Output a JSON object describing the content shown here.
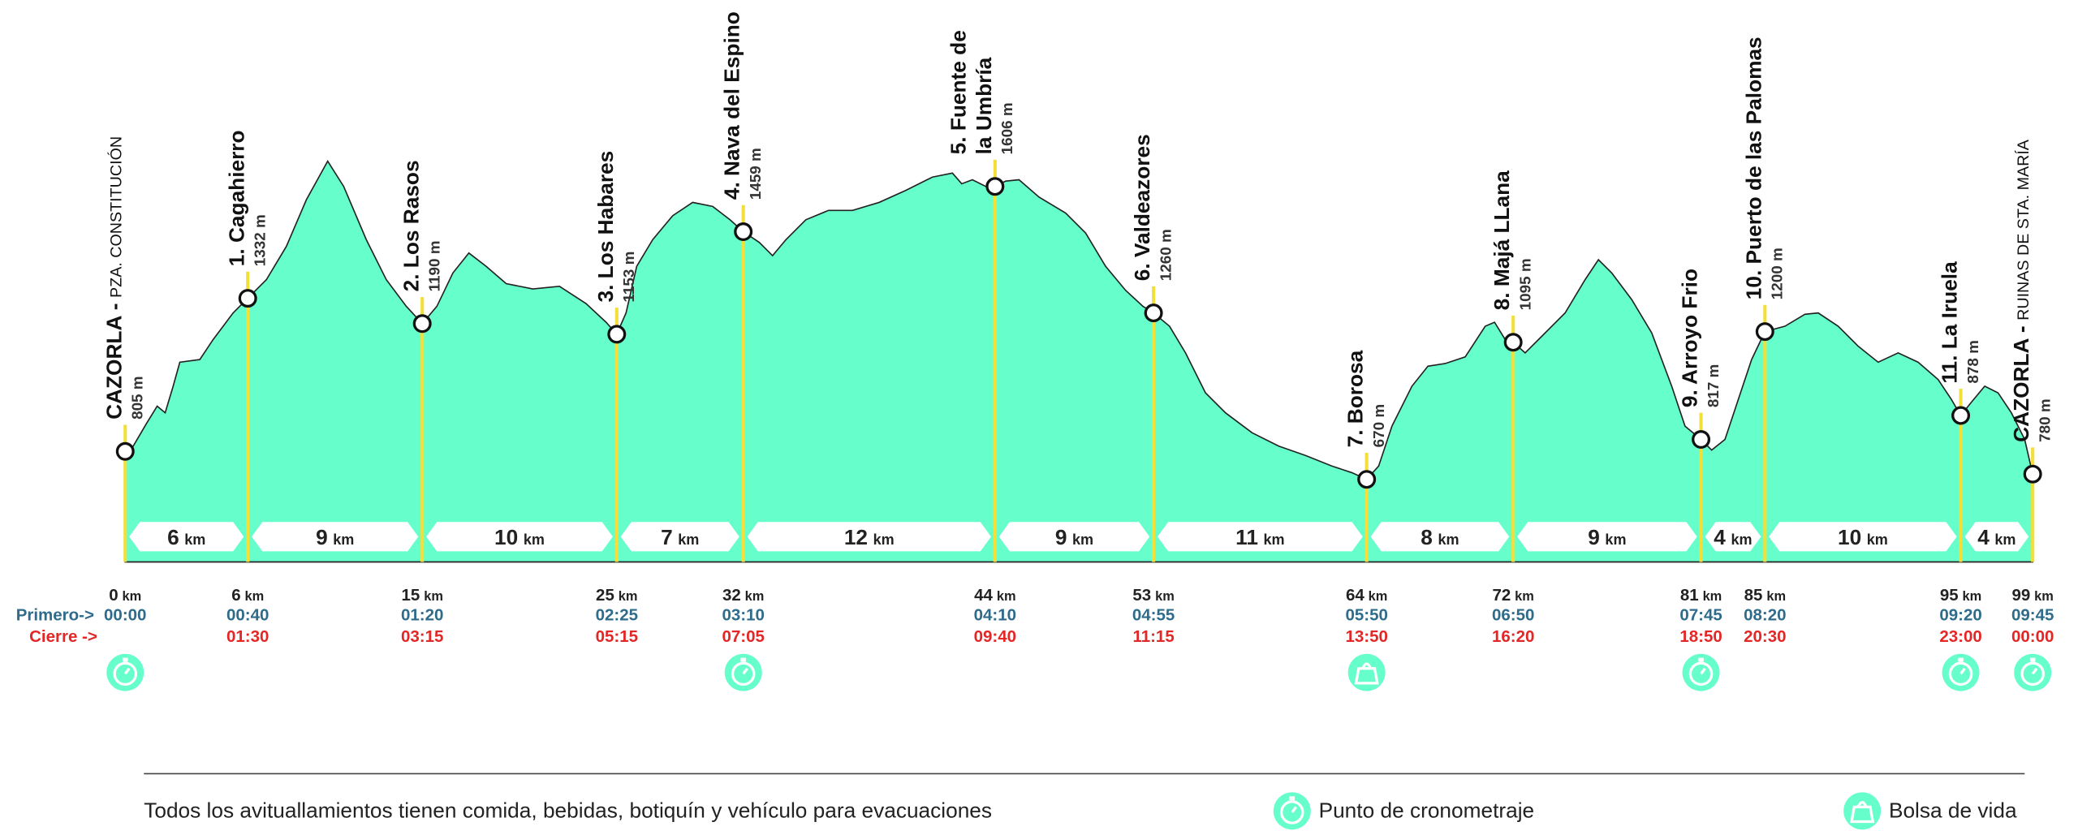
{
  "units": {
    "km": "km"
  },
  "row_labels": {
    "primero": "Primero->",
    "cierre": "Cierre ->"
  },
  "checkpoints": [
    {
      "name": [
        "CAZORLA -"
      ],
      "place": "PZA. CONSTITUCIÓN",
      "altitude": "805 m",
      "km": "0",
      "primero": "00:00",
      "icon": "timer"
    },
    {
      "name": [
        "1. Cagahierro"
      ],
      "altitude": "1332 m",
      "km": "6",
      "primero": "00:40",
      "cierre": "01:30"
    },
    {
      "name": [
        "2. Los Rasos"
      ],
      "altitude": "1190 m",
      "km": "15",
      "primero": "01:20",
      "cierre": "03:15"
    },
    {
      "name": [
        "3. Los Habares"
      ],
      "altitude": "1153 m",
      "km": "25",
      "primero": "02:25",
      "cierre": "05:15"
    },
    {
      "name": [
        "4. Nava del Espino"
      ],
      "altitude": "1459 m",
      "km": "32",
      "primero": "03:10",
      "cierre": "07:05",
      "icon": "timer"
    },
    {
      "name": [
        "5. Fuente de",
        "la Umbría"
      ],
      "altitude": "1606 m",
      "km": "44",
      "primero": "04:10",
      "cierre": "09:40"
    },
    {
      "name": [
        "6. Valdeazores"
      ],
      "altitude": "1260 m",
      "km": "53",
      "primero": "04:55",
      "cierre": "11:15"
    },
    {
      "name": [
        "7. Borosa"
      ],
      "altitude": "670 m",
      "km": "64",
      "primero": "05:50",
      "cierre": "13:50",
      "icon": "bag"
    },
    {
      "name": [
        "8. Majá LLana"
      ],
      "altitude": "1095 m",
      "km": "72",
      "primero": "06:50",
      "cierre": "16:20"
    },
    {
      "name": [
        "9. Arroyo Frio"
      ],
      "altitude": "817 m",
      "km": "81",
      "primero": "07:45",
      "cierre": "18:50",
      "icon": "timer"
    },
    {
      "name": [
        "10. Puerto de las Palomas"
      ],
      "altitude": "1200 m",
      "km": "85",
      "primero": "08:20",
      "cierre": "20:30"
    },
    {
      "name": [
        "11. La Iruela"
      ],
      "altitude": "878 m",
      "km": "95",
      "primero": "09:20",
      "cierre": "23:00",
      "icon": "timer"
    },
    {
      "name": [
        "CAZORLA -"
      ],
      "place": "RUINAS DE STA. MARÍA",
      "altitude": "780 m",
      "km": "99",
      "primero": "09:45",
      "cierre": "00:00",
      "icon": "timer"
    }
  ],
  "segments": [
    "6",
    "9",
    "10",
    "7",
    "12",
    "9",
    "11",
    "8",
    "9",
    "4",
    "10",
    "4"
  ],
  "footer": {
    "note": "Todos los avituallamientos tienen comida, bebidas, botiquín y vehículo para evacuaciones",
    "legend": [
      {
        "icon": "timer",
        "label": "Punto de cronometraje"
      },
      {
        "icon": "bag",
        "label": "Bolsa de vida"
      }
    ]
  }
}
